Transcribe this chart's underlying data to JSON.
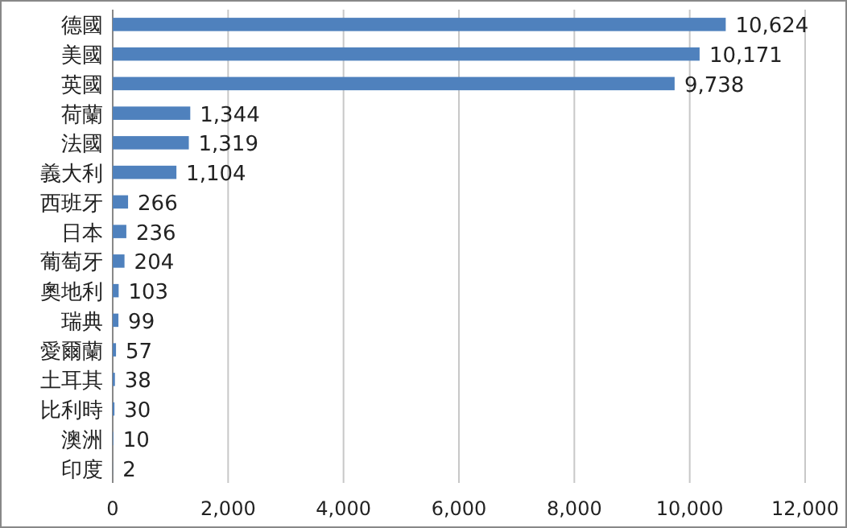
{
  "chart_data": {
    "type": "bar",
    "orientation": "horizontal",
    "categories": [
      "德國",
      "美國",
      "英國",
      "荷蘭",
      "法國",
      "義大利",
      "西班牙",
      "日本",
      "葡萄牙",
      "奧地利",
      "瑞典",
      "愛爾蘭",
      "土耳其",
      "比利時",
      "澳洲",
      "印度"
    ],
    "values": [
      10624,
      10171,
      9738,
      1344,
      1319,
      1104,
      266,
      236,
      204,
      103,
      99,
      57,
      38,
      30,
      10,
      2
    ],
    "value_labels": [
      "10,624",
      "10,171",
      "9,738",
      "1,344",
      "1,319",
      "1,104",
      "266",
      "236",
      "204",
      "103",
      "99",
      "57",
      "38",
      "30",
      "10",
      "2"
    ],
    "color": "#4f81bd",
    "xlim": [
      0,
      12000
    ],
    "xticks": [
      0,
      {
        "value": 2000,
        "label": "2,000"
      },
      {
        "value": 4000,
        "label": "4,000"
      },
      {
        "value": 6000,
        "label": "6,000"
      },
      {
        "value": 8000,
        "label": "8,000"
      },
      {
        "value": 10000,
        "label": "10,000"
      },
      {
        "value": 12000,
        "label": "12,000"
      }
    ],
    "grid": "x"
  }
}
